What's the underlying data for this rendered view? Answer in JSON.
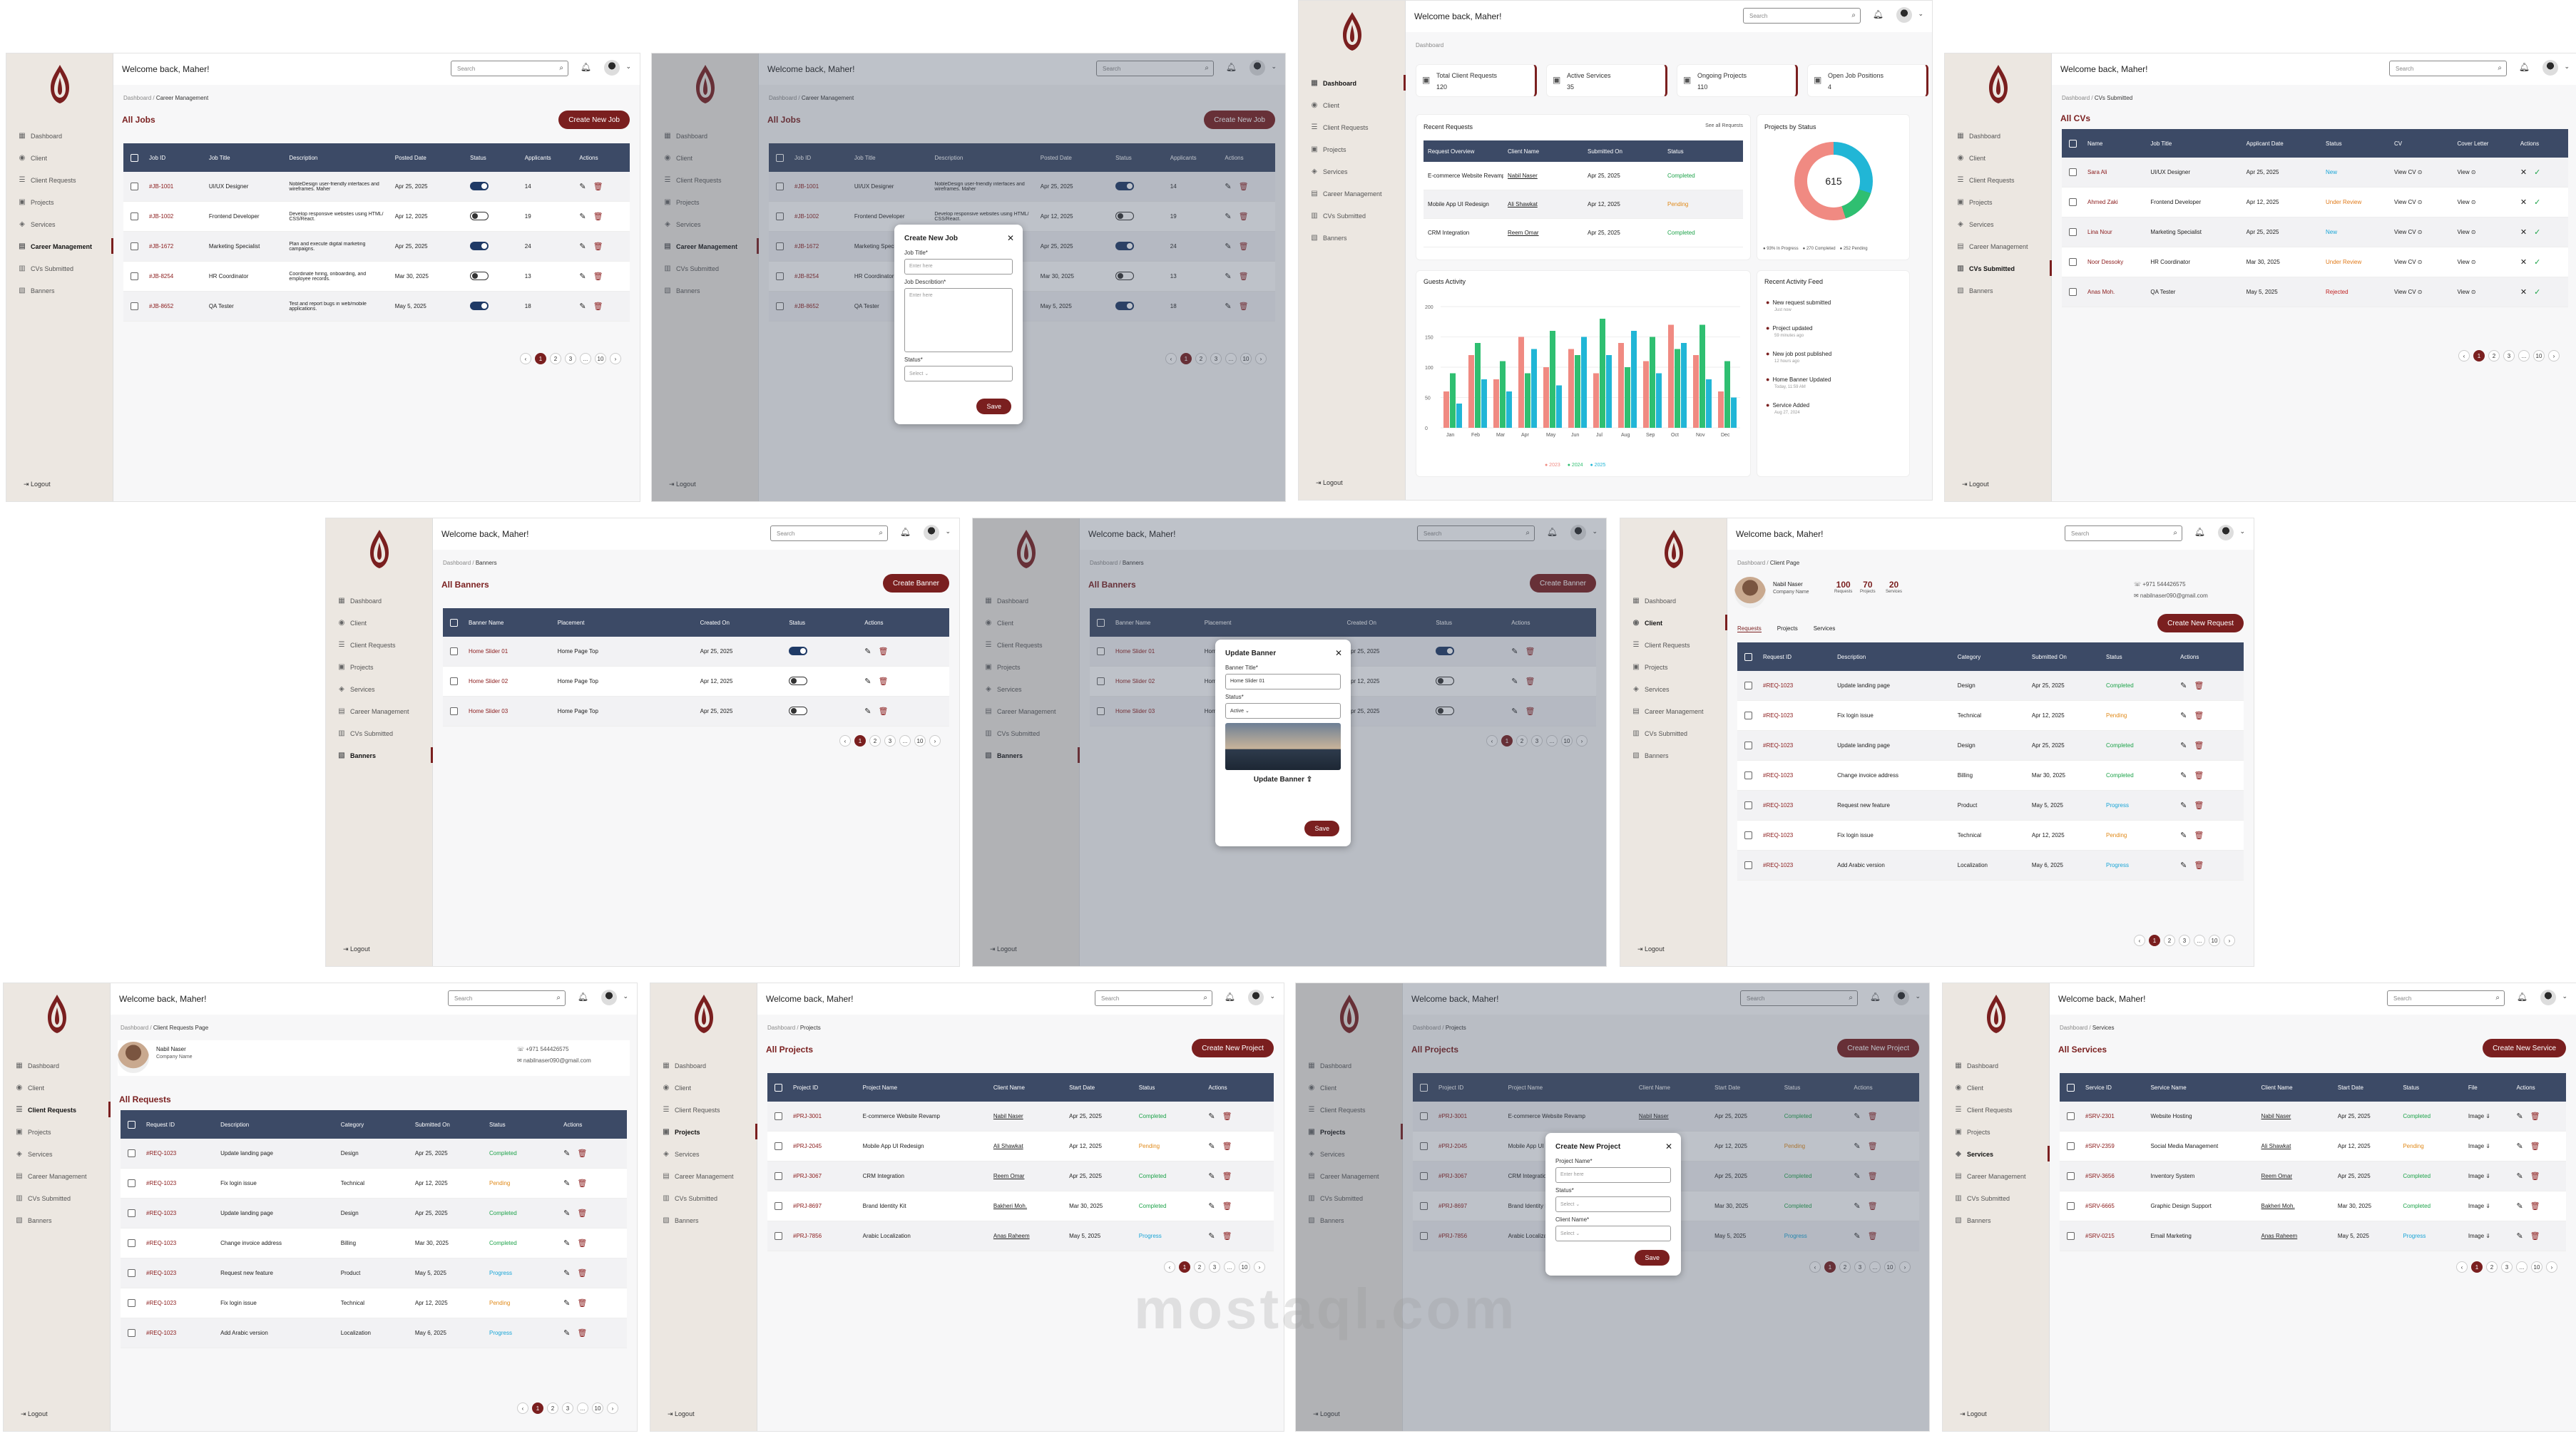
{
  "welcome": "Welcome back, Maher!",
  "search_placeholder": "Search",
  "logout": "Logout",
  "sidebar": [
    "Dashboard",
    "Client",
    "Client Requests",
    "Projects",
    "Services",
    "Career Management",
    "CVs Submitted",
    "Banners"
  ],
  "crumb_root": "Dashboard",
  "jobs": {
    "crumb": "Career Management",
    "title": "All Jobs",
    "btn": "Create New Job",
    "cols": [
      "Job ID",
      "Job Title",
      "Description",
      "Posted Date",
      "Status",
      "Applicants",
      "Actions"
    ],
    "rows": [
      [
        "#JB-1001",
        "UI/UX Designer",
        "NobleDesign user-friendly interfaces and wireframes. Maher",
        "Apr 25, 2025",
        "on",
        "14"
      ],
      [
        "#JB-1002",
        "Frontend Developer",
        "Develop responsive websites using HTML/ CSS/React.",
        "Apr 12, 2025",
        "off",
        "19"
      ],
      [
        "#JB-1672",
        "Marketing Specialist",
        "Plan and execute digital marketing campaigns.",
        "Apr 25, 2025",
        "on",
        "24"
      ],
      [
        "#JB-8254",
        "HR Coordinator",
        "Coordinate hiring, onboarding, and employee records.",
        "Mar 30, 2025",
        "off",
        "13"
      ],
      [
        "#JB-8652",
        "QA Tester",
        "Test and report bugs in web/mobile applications.",
        "May 5, 2025",
        "on",
        "18"
      ]
    ]
  },
  "modal_job": {
    "title": "Create New Job",
    "f1": "Job Title*",
    "p1": "Enter here",
    "f2": "Job Describtion*",
    "p2": "Enter here",
    "f3": "Status*",
    "p3": "Select",
    "save": "Save"
  },
  "dash": {
    "crumb": "Dashboard",
    "stats": [
      {
        "label": "Total Client Requests",
        "value": "120"
      },
      {
        "label": "Active Services",
        "value": "35"
      },
      {
        "label": "Ongoing Projects",
        "value": "110"
      },
      {
        "label": "Open Job Positions",
        "value": "4"
      }
    ],
    "recent_title": "Recent Requests",
    "see_all": "See all Requests",
    "recent_cols": [
      "Request Overview",
      "Client Name",
      "Submitted On",
      "Status"
    ],
    "recent": [
      [
        "E-commerce Website Revamp",
        "Nabil Naser",
        "Apr 25, 2025",
        "Completed"
      ],
      [
        "Mobile App UI Redesign",
        "Ali Shawkat",
        "Apr 12, 2025",
        "Pending"
      ],
      [
        "CRM Integration",
        "Reem Omar",
        "Apr 25, 2025",
        "Completed"
      ]
    ],
    "proj_title": "Projects by Status",
    "donut_value": "615",
    "donut_legend": [
      "93% In Progress",
      "270 Completed",
      "252 Pending"
    ],
    "guests_title": "Guests Activity",
    "guests_legend": [
      "2023",
      "2024",
      "2025"
    ],
    "activity_title": "Recent Activity Feed",
    "activity": [
      [
        "New request submitted",
        "Just now"
      ],
      [
        "Project updated",
        "59 minutes ago"
      ],
      [
        "New job post published",
        "12 hours ago"
      ],
      [
        "Home Banner Updated",
        "Today, 11:59 AM"
      ],
      [
        "Service Added",
        "Aug 27, 2024"
      ]
    ]
  },
  "guests_chart": {
    "type": "bar",
    "categories": [
      "Jan",
      "Feb",
      "Mar",
      "Apr",
      "May",
      "Jun",
      "Jul",
      "Aug",
      "Sep",
      "Oct",
      "Nov",
      "Dec"
    ],
    "series": [
      {
        "name": "2023",
        "values": [
          60,
          120,
          80,
          150,
          100,
          130,
          90,
          140,
          110,
          170,
          120,
          60
        ]
      },
      {
        "name": "2024",
        "values": [
          90,
          140,
          110,
          90,
          160,
          120,
          180,
          100,
          150,
          130,
          170,
          110
        ]
      },
      {
        "name": "2025",
        "values": [
          40,
          80,
          60,
          130,
          70,
          150,
          120,
          160,
          90,
          140,
          80,
          50
        ]
      }
    ],
    "ylim": [
      0,
      200
    ],
    "yticks": [
      "200",
      "150",
      "100",
      "50",
      "0"
    ]
  },
  "cvs": {
    "crumb": "CVs Submitted",
    "title": "All CVs",
    "cols": [
      "Name",
      "Job Title",
      "Applicant Date",
      "Status",
      "CV",
      "Cover Letter",
      "Actions"
    ],
    "rows": [
      [
        "Sara Ali",
        "UI/UX Designer",
        "Apr 25, 2025",
        "New",
        "View CV",
        "View"
      ],
      [
        "Ahmed Zaki",
        "Frontend Developer",
        "Apr 12, 2025",
        "Under Review",
        "View CV",
        "View"
      ],
      [
        "Lina Nour",
        "Marketing Specialist",
        "Apr 25, 2025",
        "New",
        "View CV",
        "View"
      ],
      [
        "Noor Dessoky",
        "HR Coordinator",
        "Mar 30, 2025",
        "Under Review",
        "View CV",
        "View"
      ],
      [
        "Anas Moh.",
        "QA Tester",
        "May 5, 2025",
        "Rejected",
        "View CV",
        "View"
      ]
    ]
  },
  "banners": {
    "crumb": "Banners",
    "title": "All Banners",
    "btn": "Create Banner",
    "cols": [
      "Banner Name",
      "Placement",
      "Created On",
      "Status",
      "Actions"
    ],
    "rows": [
      [
        "Home Slider 01",
        "Home Page Top",
        "Apr 25, 2025",
        "on"
      ],
      [
        "Home Slider 02",
        "Home Page Top",
        "Apr 12, 2025",
        "off"
      ],
      [
        "Home Slider 03",
        "Home Page Top",
        "Apr 25, 2025",
        "off"
      ]
    ]
  },
  "modal_banner": {
    "title": "Update Banner",
    "f1": "Banner Title*",
    "v1": "Home Slider 01",
    "f2": "Status*",
    "v2": "Active",
    "upload": "Update Banner",
    "save": "Save"
  },
  "client": {
    "crumb": "Client Page",
    "name": "Nabil Naser",
    "company": "Company Name",
    "s1v": "100",
    "s1l": "Requests",
    "s2v": "70",
    "s2l": "Projects",
    "s3v": "20",
    "s3l": "Services",
    "phone": "+971 544426575",
    "email": "nabilnaser090@gmail.com",
    "tabs": [
      "Requests",
      "Projects",
      "Services"
    ],
    "btn": "Create New Request",
    "cols": [
      "Request ID",
      "Description",
      "Category",
      "Submitted On",
      "Status",
      "Actions"
    ],
    "rows": [
      [
        "#REQ-1023",
        "Update landing page",
        "Design",
        "Apr 25, 2025",
        "Completed"
      ],
      [
        "#REQ-1023",
        "Fix login issue",
        "Technical",
        "Apr 12, 2025",
        "Pending"
      ],
      [
        "#REQ-1023",
        "Update landing page",
        "Design",
        "Apr 25, 2025",
        "Completed"
      ],
      [
        "#REQ-1023",
        "Change invoice address",
        "Billing",
        "Mar 30, 2025",
        "Completed"
      ],
      [
        "#REQ-1023",
        "Request new feature",
        "Product",
        "May 5, 2025",
        "Progress"
      ],
      [
        "#REQ-1023",
        "Fix login issue",
        "Technical",
        "Apr 12, 2025",
        "Pending"
      ],
      [
        "#REQ-1023",
        "Add Arabic version",
        "Localization",
        "May 6, 2025",
        "Progress"
      ]
    ]
  },
  "creq": {
    "crumb": "Client Requests Page",
    "title": "All Requests"
  },
  "projects": {
    "crumb": "Projects",
    "title": "All Projects",
    "btn": "Create New Project",
    "cols": [
      "Project ID",
      "Project Name",
      "Client Name",
      "Start Date",
      "Status",
      "Actions"
    ],
    "rows": [
      [
        "#PRJ-3001",
        "E-commerce Website Revamp",
        "Nabil Naser",
        "Apr 25, 2025",
        "Completed"
      ],
      [
        "#PRJ-2045",
        "Mobile App UI Redesign",
        "Ali Shawkat",
        "Apr 12, 2025",
        "Pending"
      ],
      [
        "#PRJ-3067",
        "CRM Integration",
        "Reem Omar",
        "Apr 25, 2025",
        "Completed"
      ],
      [
        "#PRJ-8697",
        "Brand Identity Kit",
        "Bakheri Moh.",
        "Mar 30, 2025",
        "Completed"
      ],
      [
        "#PRJ-7856",
        "Arabic Localization",
        "Anas Raheem",
        "May 5, 2025",
        "Progress"
      ]
    ]
  },
  "modal_proj": {
    "title": "Create New Project",
    "f1": "Project Name*",
    "p1": "Enter here",
    "f2": "Status*",
    "p2": "Select",
    "f3": "Client Name*",
    "p3": "Select",
    "save": "Save"
  },
  "services": {
    "crumb": "Services",
    "title": "All Services",
    "btn": "Create New Service",
    "cols": [
      "Service ID",
      "Service Name",
      "Client Name",
      "Start Date",
      "Status",
      "File",
      "Actions"
    ],
    "rows": [
      [
        "#SRV-2301",
        "Website Hosting",
        "Nabil Naser",
        "Apr 25, 2025",
        "Completed",
        "Image"
      ],
      [
        "#SRV-2359",
        "Social Media Management",
        "Ali Shawkat",
        "Apr 12, 2025",
        "Pending",
        "Image"
      ],
      [
        "#SRV-3656",
        "Inventory System",
        "Reem Omar",
        "Apr 25, 2025",
        "Completed",
        "Image"
      ],
      [
        "#SRV-6665",
        "Graphic Design Support",
        "Bakheri Moh.",
        "Mar 30, 2025",
        "Completed",
        "Image"
      ],
      [
        "#SRV-0215",
        "Email Marketing",
        "Anas Raheem",
        "May 5, 2025",
        "Progress",
        "Image"
      ]
    ]
  },
  "pages": [
    "1",
    "2",
    "3",
    "...",
    "10"
  ],
  "watermark": "mostaql.com"
}
